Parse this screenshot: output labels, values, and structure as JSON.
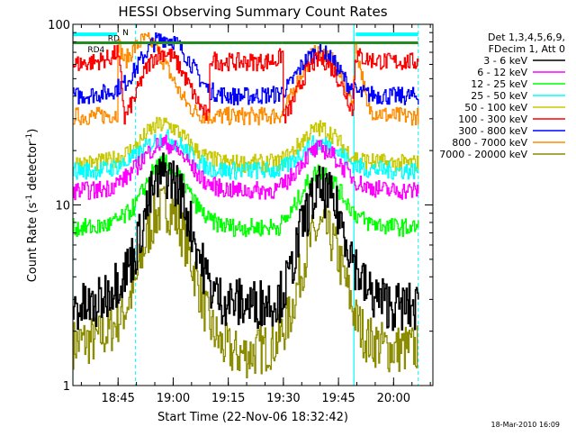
{
  "chart_data": {
    "type": "line",
    "title": "HESSI Observing Summary Count Rates",
    "xlabel": "Start Time (22-Nov-06 18:32:42)",
    "ylabel_main": "Count Rate (s",
    "ylabel_sup1": "-1",
    "ylabel_mid": " detector",
    "ylabel_sup2": "-1",
    "ylabel_end": ")",
    "x_unit": "minutes since 18:32:42",
    "xlim": [
      0,
      98
    ],
    "ylim": [
      1,
      100
    ],
    "yscale": "log",
    "x_ticks": [
      {
        "label": "18:45",
        "value": 12.3
      },
      {
        "label": "19:00",
        "value": 27.3
      },
      {
        "label": "19:15",
        "value": 42.3
      },
      {
        "label": "19:30",
        "value": 57.3
      },
      {
        "label": "19:45",
        "value": 72.3
      },
      {
        "label": "20:00",
        "value": 87.3
      }
    ],
    "y_ticks": [
      {
        "label": "1",
        "value": 1
      },
      {
        "label": "10",
        "value": 10
      },
      {
        "label": "100",
        "value": 100
      }
    ],
    "legend": {
      "position": "right",
      "header": [
        "Det 1,3,4,5,6,9,",
        "FDecim 1, Att 0"
      ],
      "entries": [
        {
          "label": "3 - 6 keV",
          "color": "#000000"
        },
        {
          "label": "6 - 12 keV",
          "color": "#ff00ff"
        },
        {
          "label": "12 - 25 keV",
          "color": "#00ff00"
        },
        {
          "label": "25 - 50 keV",
          "color": "#00ffff"
        },
        {
          "label": "50 - 100 keV",
          "color": "#c8c800"
        },
        {
          "label": "100 - 300 keV",
          "color": "#ff0000"
        },
        {
          "label": "300 - 800 keV",
          "color": "#0000ff"
        },
        {
          "label": "800 - 7000 keV",
          "color": "#ff8c00"
        },
        {
          "label": "7000 - 20000 keV",
          "color": "#8c8c00"
        }
      ]
    },
    "flags": [
      {
        "label": "N",
        "color": "#00ffff",
        "value": 88,
        "segments": [
          [
            0,
            12
          ],
          [
            77,
            94
          ]
        ]
      },
      {
        "label": "RD",
        "color": "#228b22",
        "value": 79,
        "segments": [
          [
            0,
            37
          ],
          [
            37,
            57
          ],
          [
            57,
            77
          ],
          [
            77,
            94
          ]
        ]
      },
      {
        "label": "RD4",
        "color": "#228b22",
        "value": 79,
        "segments": []
      }
    ],
    "saa_solid_lines": [
      0,
      76.5
    ],
    "dashed_lines": [
      17,
      94
    ],
    "series": [
      {
        "name": "3 - 6 keV",
        "color": "#000000",
        "x": [
          0,
          6,
          10,
          14,
          17,
          19,
          21,
          23,
          25,
          27,
          29,
          31,
          33,
          35,
          37,
          40,
          44,
          48,
          52,
          56,
          59,
          61,
          63,
          65,
          67,
          69,
          71,
          73,
          75,
          77,
          80,
          86,
          90,
          94
        ],
        "values": [
          2.7,
          2.7,
          3.4,
          4.2,
          5.5,
          8.0,
          11,
          13.5,
          15,
          14,
          12,
          9,
          6.5,
          4.7,
          3.6,
          3.0,
          2.9,
          2.8,
          2.9,
          3.0,
          4.0,
          6.0,
          8.5,
          10.5,
          12,
          11.5,
          10,
          8,
          6,
          4.5,
          3.3,
          2.8,
          2.7,
          2.7
        ]
      },
      {
        "name": "6 - 12 keV",
        "color": "#ff00ff",
        "x": [
          0,
          6,
          10,
          14,
          17,
          19,
          21,
          23,
          25,
          27,
          29,
          31,
          33,
          35,
          37,
          40,
          44,
          48,
          52,
          56,
          59,
          61,
          63,
          65,
          67,
          69,
          71,
          73,
          75,
          77,
          80,
          86,
          90,
          94
        ],
        "values": [
          12,
          12,
          12.5,
          14,
          16,
          18,
          20,
          21.5,
          22,
          21,
          19.5,
          17.5,
          15.5,
          14,
          13,
          12.4,
          12,
          12,
          12,
          12.2,
          14,
          16,
          18,
          19.5,
          20.5,
          20,
          18.5,
          16.5,
          15,
          13.5,
          12.6,
          12,
          12,
          12
        ]
      },
      {
        "name": "12 - 25 keV",
        "color": "#00ff00",
        "x": [
          0,
          6,
          10,
          14,
          17,
          19,
          21,
          23,
          25,
          27,
          29,
          31,
          33,
          35,
          37,
          40,
          44,
          48,
          52,
          56,
          59,
          61,
          63,
          65,
          67,
          69,
          71,
          73,
          75,
          77,
          80,
          86,
          90,
          94
        ],
        "values": [
          7.5,
          7.5,
          7.8,
          8.6,
          10,
          12,
          14.5,
          16.5,
          17,
          16,
          14.2,
          12.2,
          10.4,
          9.1,
          8.2,
          7.8,
          7.5,
          7.5,
          7.5,
          7.6,
          8.8,
          10.5,
          12.5,
          14.3,
          15.5,
          15,
          13.5,
          11.5,
          10,
          8.8,
          8,
          7.6,
          7.5,
          7.5
        ]
      },
      {
        "name": "25 - 50 keV",
        "color": "#00ffff",
        "x": [
          0,
          6,
          10,
          14,
          17,
          19,
          21,
          23,
          25,
          27,
          29,
          31,
          33,
          35,
          37,
          40,
          44,
          48,
          52,
          56,
          59,
          61,
          63,
          65,
          67,
          69,
          71,
          73,
          75,
          77,
          80,
          86,
          90,
          94
        ],
        "values": [
          15.5,
          15.5,
          15.8,
          17,
          18.5,
          20,
          21.8,
          23,
          23.5,
          23,
          21.5,
          19.8,
          18,
          16.8,
          16,
          15.6,
          15.5,
          15.5,
          15.5,
          15.6,
          16.8,
          18.5,
          20,
          21.5,
          22,
          21.5,
          20.5,
          19,
          17.5,
          16.5,
          15.8,
          15.5,
          15.5,
          15.5
        ]
      },
      {
        "name": "50 - 100 keV",
        "color": "#c8c800",
        "x": [
          0,
          6,
          10,
          14,
          17,
          19,
          21,
          23,
          25,
          27,
          29,
          31,
          33,
          35,
          37,
          40,
          44,
          48,
          52,
          56,
          59,
          61,
          63,
          65,
          67,
          69,
          71,
          73,
          75,
          77,
          80,
          86,
          90,
          94
        ],
        "values": [
          17,
          17,
          17.5,
          19,
          21,
          23.5,
          26,
          27.5,
          28,
          27,
          25,
          22.5,
          20.5,
          19,
          18,
          17.3,
          17,
          17,
          17,
          17.2,
          19,
          21,
          23.5,
          25.5,
          26.5,
          26,
          24,
          21.5,
          19.5,
          18.2,
          17.5,
          17,
          17,
          17
        ]
      },
      {
        "name": "100 - 300 keV",
        "color": "#ff0000",
        "x": [
          0,
          6,
          10,
          12,
          14,
          17,
          19,
          21,
          23,
          25,
          27,
          29,
          31,
          33,
          35,
          37,
          37.1,
          40,
          44,
          48,
          52,
          56,
          57,
          57.1,
          59,
          61,
          63,
          65,
          67,
          69,
          71,
          73,
          75,
          76.4,
          76.6,
          80,
          86,
          90,
          94
        ],
        "values": [
          60,
          62,
          65,
          70,
          30,
          40,
          52,
          62,
          68,
          70,
          66,
          58,
          48,
          40,
          34,
          30,
          65,
          62,
          62,
          62,
          62,
          64,
          70,
          30,
          34,
          42,
          52,
          60,
          64,
          62,
          55,
          46,
          38,
          32,
          68,
          64,
          62,
          62,
          62
        ]
      },
      {
        "name": "300 - 800 keV",
        "color": "#0000ff",
        "x": [
          0,
          6,
          10,
          14,
          17,
          19,
          21,
          23,
          25,
          27,
          29,
          31,
          33,
          35,
          37,
          40,
          44,
          48,
          52,
          56,
          59,
          61,
          63,
          65,
          67,
          69,
          71,
          73,
          75,
          77,
          80,
          86,
          90,
          94
        ],
        "values": [
          40,
          41,
          42,
          47,
          56,
          66,
          76,
          82,
          84,
          82,
          75,
          66,
          56,
          48,
          43,
          41,
          40,
          40,
          40.5,
          41,
          46,
          54,
          62,
          68,
          70,
          68,
          61,
          53,
          46,
          42,
          41,
          40,
          40,
          40
        ]
      },
      {
        "name": "800 - 7000 keV",
        "color": "#ff8c00",
        "x": [
          0,
          6,
          10,
          12,
          12.2,
          14,
          17,
          19,
          21,
          23,
          25,
          27,
          29,
          31,
          33,
          35,
          37,
          40,
          44,
          48,
          52,
          56,
          57,
          59,
          61,
          63,
          65,
          67,
          69,
          71,
          73,
          75,
          76.4,
          76.6,
          80,
          86,
          90,
          94
        ],
        "values": [
          31,
          31,
          31.5,
          32,
          79,
          62,
          75,
          82,
          80,
          72,
          60,
          50,
          42,
          36,
          33,
          31.5,
          31,
          31,
          31,
          31,
          31,
          31.5,
          32,
          38,
          48,
          58,
          67,
          70,
          68,
          60,
          50,
          42,
          36,
          79,
          34,
          31,
          31,
          31
        ]
      },
      {
        "name": "7000 - 20000 keV",
        "color": "#8c8c00",
        "x": [
          0,
          6,
          10,
          14,
          17,
          19,
          21,
          23,
          25,
          27,
          29,
          31,
          33,
          35,
          37,
          40,
          44,
          48,
          52,
          56,
          59,
          61,
          63,
          65,
          67,
          69,
          71,
          73,
          75,
          77,
          80,
          86,
          90,
          94
        ],
        "values": [
          1.7,
          1.8,
          2.0,
          2.6,
          3.6,
          5.5,
          7.5,
          9.0,
          9.8,
          9.2,
          7.6,
          5.8,
          4.2,
          3.0,
          2.2,
          1.7,
          1.5,
          1.5,
          1.6,
          1.8,
          2.4,
          3.5,
          5.0,
          6.5,
          7.5,
          7.2,
          6.0,
          4.5,
          3.2,
          2.3,
          1.8,
          1.6,
          1.6,
          1.6
        ]
      }
    ]
  },
  "footer": {
    "timestamp": "18-Mar-2010 16:09"
  }
}
